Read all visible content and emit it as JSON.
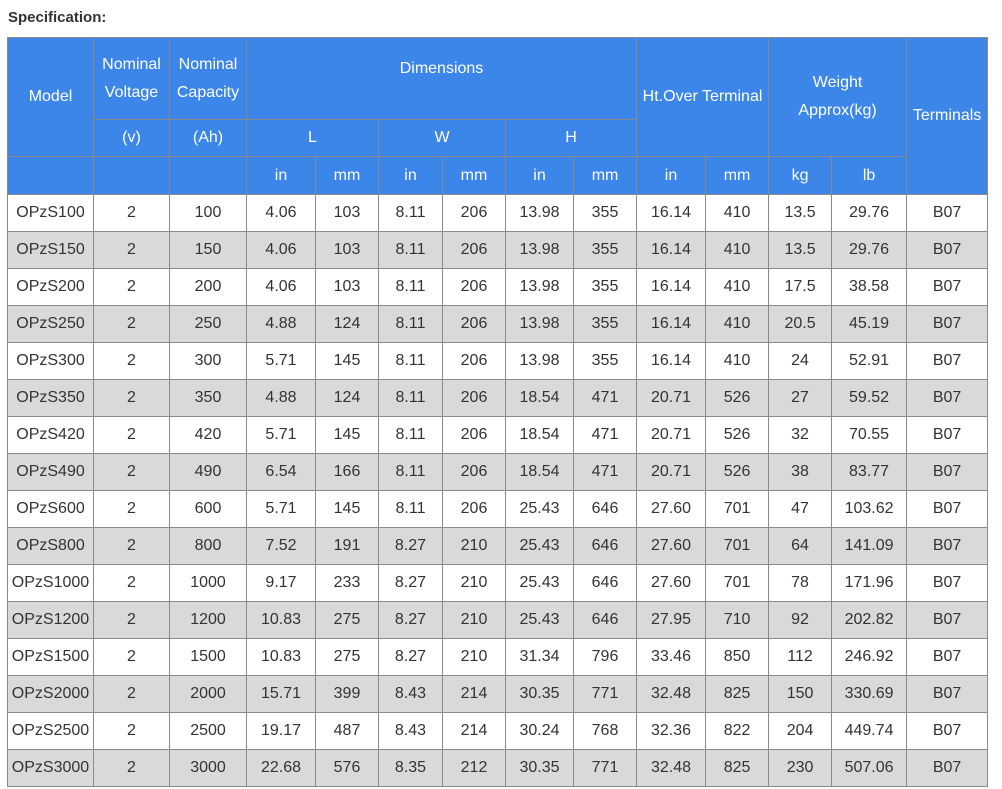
{
  "title": "Specification:",
  "header": {
    "model": "Model",
    "nominal_voltage": "Nominal Voltage",
    "nominal_capacity": "Nominal Capacity",
    "dimensions": "Dimensions",
    "ht_over_terminal": "Ht.Over Terminal",
    "weight": "Weight Approx(kg)",
    "terminals": "Terminals",
    "voltage_unit": "(v)",
    "capacity_unit": "(Ah)",
    "dim_l": "L",
    "dim_w": "W",
    "dim_h": "H",
    "unit_in": "in",
    "unit_mm": "mm",
    "unit_kg": "kg",
    "unit_lb": "lb"
  },
  "rows": [
    [
      "OPzS100",
      "2",
      "100",
      "4.06",
      "103",
      "8.11",
      "206",
      "13.98",
      "355",
      "16.14",
      "410",
      "13.5",
      "29.76",
      "B07"
    ],
    [
      "OPzS150",
      "2",
      "150",
      "4.06",
      "103",
      "8.11",
      "206",
      "13.98",
      "355",
      "16.14",
      "410",
      "13.5",
      "29.76",
      "B07"
    ],
    [
      "OPzS200",
      "2",
      "200",
      "4.06",
      "103",
      "8.11",
      "206",
      "13.98",
      "355",
      "16.14",
      "410",
      "17.5",
      "38.58",
      "B07"
    ],
    [
      "OPzS250",
      "2",
      "250",
      "4.88",
      "124",
      "8.11",
      "206",
      "13.98",
      "355",
      "16.14",
      "410",
      "20.5",
      "45.19",
      "B07"
    ],
    [
      "OPzS300",
      "2",
      "300",
      "5.71",
      "145",
      "8.11",
      "206",
      "13.98",
      "355",
      "16.14",
      "410",
      "24",
      "52.91",
      "B07"
    ],
    [
      "OPzS350",
      "2",
      "350",
      "4.88",
      "124",
      "8.11",
      "206",
      "18.54",
      "471",
      "20.71",
      "526",
      "27",
      "59.52",
      "B07"
    ],
    [
      "OPzS420",
      "2",
      "420",
      "5.71",
      "145",
      "8.11",
      "206",
      "18.54",
      "471",
      "20.71",
      "526",
      "32",
      "70.55",
      "B07"
    ],
    [
      "OPzS490",
      "2",
      "490",
      "6.54",
      "166",
      "8.11",
      "206",
      "18.54",
      "471",
      "20.71",
      "526",
      "38",
      "83.77",
      "B07"
    ],
    [
      "OPzS600",
      "2",
      "600",
      "5.71",
      "145",
      "8.11",
      "206",
      "25.43",
      "646",
      "27.60",
      "701",
      "47",
      "103.62",
      "B07"
    ],
    [
      "OPzS800",
      "2",
      "800",
      "7.52",
      "191",
      "8.27",
      "210",
      "25.43",
      "646",
      "27.60",
      "701",
      "64",
      "141.09",
      "B07"
    ],
    [
      "OPzS1000",
      "2",
      "1000",
      "9.17",
      "233",
      "8.27",
      "210",
      "25.43",
      "646",
      "27.60",
      "701",
      "78",
      "171.96",
      "B07"
    ],
    [
      "OPzS1200",
      "2",
      "1200",
      "10.83",
      "275",
      "8.27",
      "210",
      "25.43",
      "646",
      "27.95",
      "710",
      "92",
      "202.82",
      "B07"
    ],
    [
      "OPzS1500",
      "2",
      "1500",
      "10.83",
      "275",
      "8.27",
      "210",
      "31.34",
      "796",
      "33.46",
      "850",
      "112",
      "246.92",
      "B07"
    ],
    [
      "OPzS2000",
      "2",
      "2000",
      "15.71",
      "399",
      "8.43",
      "214",
      "30.35",
      "771",
      "32.48",
      "825",
      "150",
      "330.69",
      "B07"
    ],
    [
      "OPzS2500",
      "2",
      "2500",
      "19.17",
      "487",
      "8.43",
      "214",
      "30.24",
      "768",
      "32.36",
      "822",
      "204",
      "449.74",
      "B07"
    ],
    [
      "OPzS3000",
      "2",
      "3000",
      "22.68",
      "576",
      "8.35",
      "212",
      "30.35",
      "771",
      "32.48",
      "825",
      "230",
      "507.06",
      "B07"
    ]
  ]
}
